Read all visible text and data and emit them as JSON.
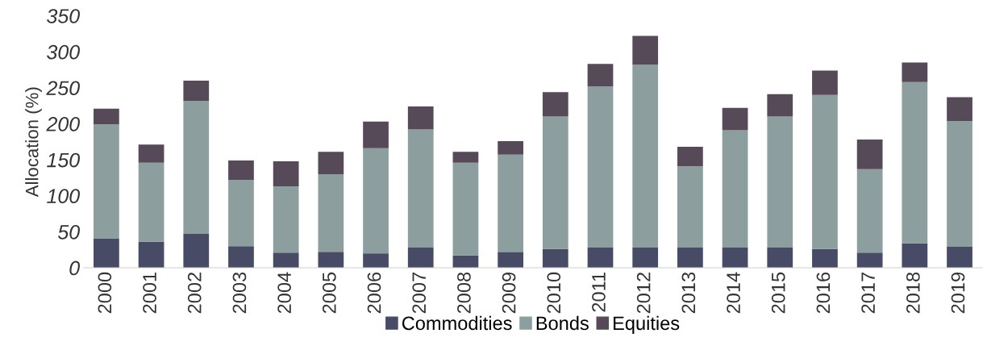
{
  "chart_data": {
    "type": "bar",
    "stacked": true,
    "ylabel": "Allocation (%)",
    "categories": [
      "2000",
      "2001",
      "2002",
      "2003",
      "2004",
      "2005",
      "2006",
      "2007",
      "2008",
      "2009",
      "2010",
      "2011",
      "2012",
      "2013",
      "2014",
      "2015",
      "2016",
      "2017",
      "2018",
      "2019"
    ],
    "series": [
      {
        "name": "Commodities",
        "color": "#474b66",
        "values": [
          41,
          36,
          47,
          30,
          21,
          22,
          20,
          28,
          17,
          22,
          26,
          28,
          28,
          28,
          28,
          28,
          26,
          21,
          34,
          29
        ]
      },
      {
        "name": "Bonds",
        "color": "#8c9e9d",
        "values": [
          158,
          110,
          185,
          92,
          92,
          108,
          146,
          164,
          129,
          135,
          184,
          224,
          254,
          113,
          163,
          182,
          214,
          116,
          224,
          175
        ]
      },
      {
        "name": "Equities",
        "color": "#574a58",
        "values": [
          22,
          25,
          28,
          27,
          35,
          31,
          37,
          32,
          15,
          19,
          34,
          31,
          40,
          27,
          31,
          31,
          34,
          41,
          27,
          33
        ]
      }
    ],
    "ylim": [
      0,
      350
    ],
    "yticks": [
      0,
      50,
      100,
      150,
      200,
      250,
      300,
      350
    ],
    "grid": false,
    "legend": "bottom"
  }
}
